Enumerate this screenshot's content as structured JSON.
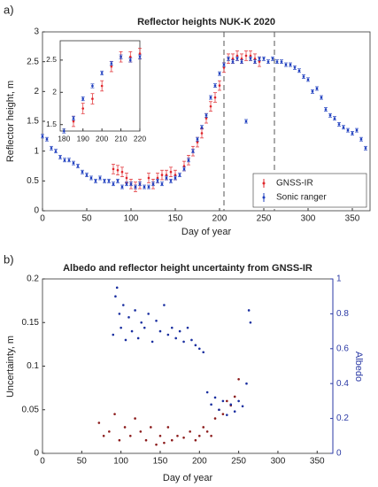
{
  "chart_data": [
    {
      "type": "scatter",
      "panel_label": "a)",
      "title": "Reflector heights NUK-K 2020",
      "xlabel": "Day of year",
      "ylabel": "Reflector height, m",
      "xlim": [
        0,
        370
      ],
      "ylim": [
        0,
        3
      ],
      "xticks": [
        0,
        50,
        100,
        150,
        200,
        250,
        300,
        350
      ],
      "yticks": [
        0,
        0.5,
        1,
        1.5,
        2,
        2.5,
        3
      ],
      "vlines": [
        205,
        262
      ],
      "legend": "southeast",
      "series": [
        {
          "name": "GNSS-IR",
          "color": "#e0262b",
          "error": 0.08,
          "x": [
            80,
            85,
            90,
            95,
            100,
            105,
            110,
            120,
            125,
            130,
            135,
            140,
            145,
            150,
            160,
            165,
            170,
            175,
            180,
            185,
            190,
            195,
            200,
            205,
            210,
            215,
            220,
            225,
            230,
            235,
            240,
            245
          ],
          "values": [
            0.7,
            0.68,
            0.65,
            0.55,
            0.45,
            0.4,
            0.45,
            0.55,
            0.45,
            0.55,
            0.6,
            0.6,
            0.65,
            0.6,
            0.75,
            0.85,
            1.0,
            1.15,
            1.3,
            1.55,
            1.75,
            1.9,
            2.1,
            2.4,
            2.55,
            2.55,
            2.6,
            2.55,
            2.6,
            2.6,
            2.55,
            2.5
          ]
        },
        {
          "name": "Sonic ranger",
          "color": "#1f3fbf",
          "error": 0.03,
          "x": [
            0,
            5,
            10,
            15,
            20,
            25,
            30,
            35,
            40,
            45,
            50,
            55,
            60,
            65,
            70,
            75,
            80,
            85,
            90,
            95,
            100,
            105,
            110,
            115,
            120,
            125,
            130,
            135,
            140,
            145,
            150,
            155,
            160,
            165,
            170,
            175,
            180,
            185,
            190,
            195,
            200,
            205,
            210,
            215,
            220,
            225,
            230,
            235,
            240,
            245,
            250,
            255,
            260,
            265,
            270,
            275,
            280,
            285,
            290,
            295,
            300,
            305,
            310,
            315,
            320,
            325,
            330,
            335,
            340,
            345,
            350,
            355,
            360,
            365
          ],
          "values": [
            1.25,
            1.2,
            1.05,
            1.0,
            0.9,
            0.85,
            0.85,
            0.8,
            0.75,
            0.65,
            0.6,
            0.55,
            0.5,
            0.55,
            0.5,
            0.5,
            0.45,
            0.5,
            0.4,
            0.45,
            0.45,
            0.4,
            0.45,
            0.4,
            0.4,
            0.45,
            0.5,
            0.45,
            0.55,
            0.5,
            0.55,
            0.6,
            0.7,
            0.85,
            1.0,
            1.2,
            1.4,
            1.6,
            1.9,
            2.1,
            2.3,
            2.45,
            2.55,
            2.5,
            2.55,
            2.5,
            1.5,
            2.55,
            2.5,
            2.55,
            2.55,
            2.5,
            2.55,
            2.5,
            2.5,
            2.45,
            2.45,
            2.4,
            2.35,
            2.25,
            2.2,
            2.0,
            2.05,
            1.9,
            1.7,
            1.6,
            1.55,
            1.45,
            1.4,
            1.35,
            1.3,
            1.35,
            1.2,
            1.05
          ]
        }
      ],
      "inset": {
        "xlim": [
          178,
          220
        ],
        "ylim": [
          1.4,
          2.8
        ],
        "xticks": [
          180,
          190,
          200,
          210,
          220
        ],
        "yticks": [
          1.5,
          2,
          2.5
        ]
      }
    },
    {
      "type": "scatter",
      "panel_label": "b)",
      "title": "Albedo and reflector height uncertainty from GNSS-IR",
      "xlabel": "Day of year",
      "ylabel": "Uncertainty, m",
      "y2label": "Albedo",
      "xlim": [
        0,
        370
      ],
      "ylim": [
        0,
        0.2
      ],
      "y2lim": [
        0,
        1
      ],
      "xticks": [
        0,
        50,
        100,
        150,
        200,
        250,
        300,
        350
      ],
      "yticks": [
        0,
        0.05,
        0.1,
        0.15,
        0.2
      ],
      "y2ticks": [
        0,
        0.2,
        0.4,
        0.6,
        0.8,
        1
      ],
      "series": [
        {
          "name": "Uncertainty",
          "color": "#8b1a1a",
          "x": [
            72,
            78,
            85,
            92,
            98,
            105,
            112,
            118,
            125,
            132,
            138,
            145,
            150,
            155,
            160,
            165,
            172,
            180,
            188,
            195,
            200,
            205,
            210,
            215,
            220,
            225,
            230,
            235,
            240,
            245,
            250
          ],
          "values": [
            0.035,
            0.02,
            0.025,
            0.045,
            0.015,
            0.03,
            0.02,
            0.04,
            0.025,
            0.015,
            0.03,
            0.01,
            0.02,
            0.012,
            0.03,
            0.015,
            0.02,
            0.018,
            0.025,
            0.015,
            0.02,
            0.03,
            0.025,
            0.02,
            0.04,
            0.05,
            0.045,
            0.06,
            0.055,
            0.065,
            0.085
          ]
        },
        {
          "name": "Albedo",
          "color": "#1a2fa0",
          "axis": "y2",
          "x": [
            90,
            93,
            95,
            98,
            100,
            103,
            106,
            110,
            114,
            118,
            122,
            126,
            130,
            135,
            140,
            145,
            150,
            155,
            160,
            165,
            170,
            175,
            180,
            185,
            190,
            195,
            200,
            205,
            210,
            215,
            220,
            225,
            230,
            235,
            240,
            245,
            250,
            255,
            260,
            263,
            265
          ],
          "values": [
            0.68,
            0.9,
            0.95,
            0.8,
            0.72,
            0.85,
            0.65,
            0.78,
            0.7,
            0.82,
            0.66,
            0.75,
            0.72,
            0.8,
            0.64,
            0.76,
            0.7,
            0.85,
            0.68,
            0.72,
            0.66,
            0.7,
            0.64,
            0.72,
            0.65,
            0.62,
            0.6,
            0.58,
            0.35,
            0.28,
            0.32,
            0.25,
            0.3,
            0.22,
            0.28,
            0.24,
            0.3,
            0.27,
            0.4,
            0.82,
            0.75
          ]
        }
      ]
    }
  ]
}
